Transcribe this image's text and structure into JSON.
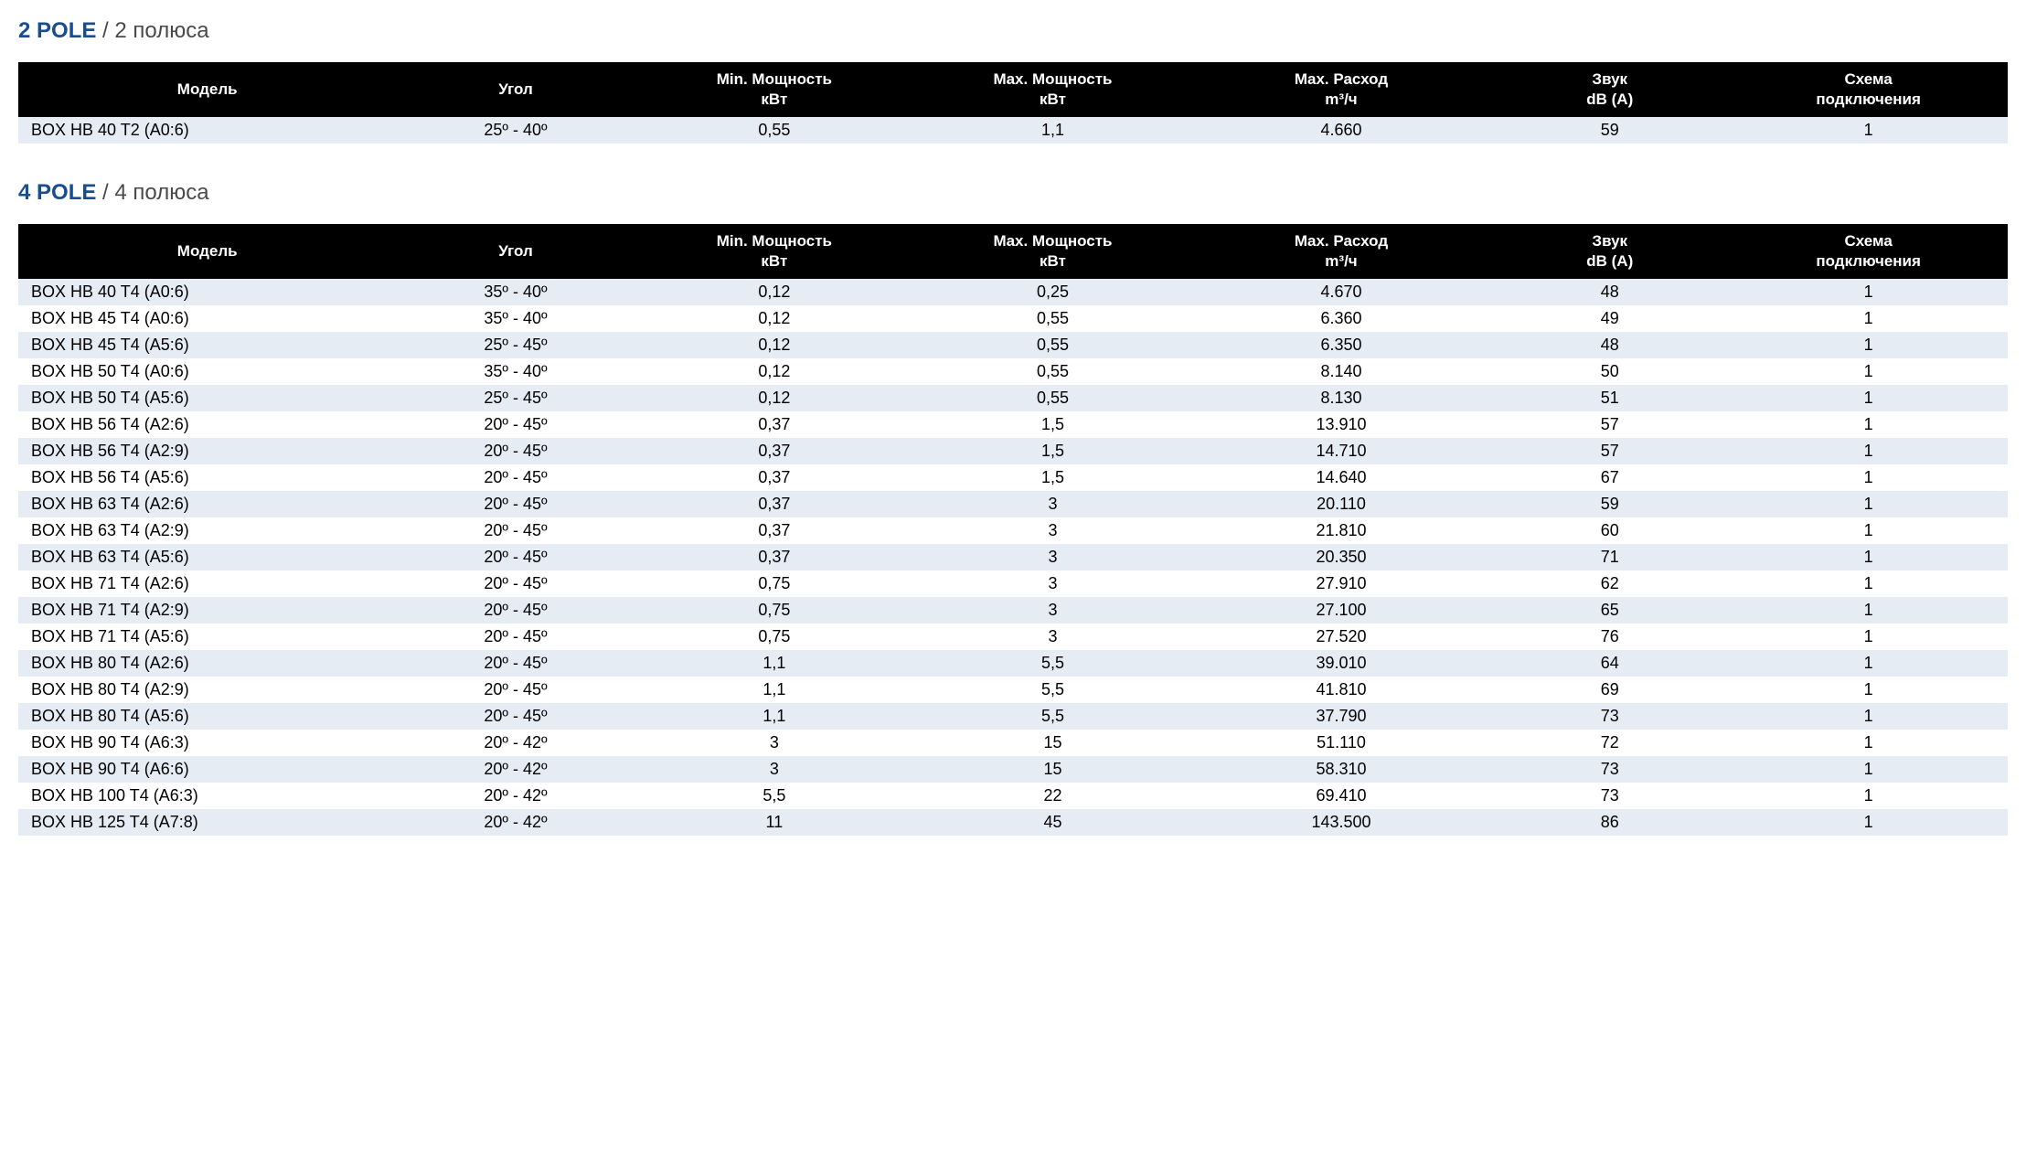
{
  "colors": {
    "header_bg": "#000000",
    "header_text": "#ffffff",
    "row_odd_bg": "#e6ecf4",
    "row_even_bg": "#ffffff",
    "title_accent": "#1a4d8f",
    "title_sub": "#4a4a4a",
    "body_text": "#000000"
  },
  "typography": {
    "body_font": "Arial",
    "body_size_pt": 14,
    "header_size_pt": 13,
    "title_size_pt": 18,
    "title_weight": "bold"
  },
  "columns": {
    "model": {
      "label_line1": "Модель",
      "label_line2": ""
    },
    "angle": {
      "label_line1": "Угол",
      "label_line2": ""
    },
    "minp": {
      "label_line1": "Min. Мощность",
      "label_line2": "кВт"
    },
    "maxp": {
      "label_line1": "Max. Мощность",
      "label_line2": "кВт"
    },
    "flow": {
      "label_line1": "Max. Расход",
      "label_line2": "m³/ч"
    },
    "sound": {
      "label_line1": "Звук",
      "label_line2": "dB (A)"
    },
    "scheme": {
      "label_line1": "Схема",
      "label_line2": "подключения"
    }
  },
  "sections": [
    {
      "title_main": "2 POLE",
      "title_sub": " / 2 полюса",
      "rows": [
        {
          "model": "BOX HB 40 T2 (A0:6)",
          "angle": "25º - 40º",
          "minp": "0,55",
          "maxp": "1,1",
          "flow": "4.660",
          "sound": "59",
          "scheme": "1"
        }
      ]
    },
    {
      "title_main": "4 POLE",
      "title_sub": " / 4 полюса",
      "rows": [
        {
          "model": "BOX HB 40 T4 (A0:6)",
          "angle": "35º - 40º",
          "minp": "0,12",
          "maxp": "0,25",
          "flow": "4.670",
          "sound": "48",
          "scheme": "1"
        },
        {
          "model": "BOX HB 45 T4 (A0:6)",
          "angle": "35º - 40º",
          "minp": "0,12",
          "maxp": "0,55",
          "flow": "6.360",
          "sound": "49",
          "scheme": "1"
        },
        {
          "model": "BOX HB 45 T4 (A5:6)",
          "angle": "25º - 45º",
          "minp": "0,12",
          "maxp": "0,55",
          "flow": "6.350",
          "sound": "48",
          "scheme": "1"
        },
        {
          "model": "BOX HB 50 T4 (A0:6)",
          "angle": "35º - 40º",
          "minp": "0,12",
          "maxp": "0,55",
          "flow": "8.140",
          "sound": "50",
          "scheme": "1"
        },
        {
          "model": "BOX HB 50 T4 (A5:6)",
          "angle": "25º - 45º",
          "minp": "0,12",
          "maxp": "0,55",
          "flow": "8.130",
          "sound": "51",
          "scheme": "1"
        },
        {
          "model": "BOX HB 56 T4 (A2:6)",
          "angle": "20º - 45º",
          "minp": "0,37",
          "maxp": "1,5",
          "flow": "13.910",
          "sound": "57",
          "scheme": "1"
        },
        {
          "model": "BOX HB 56 T4 (A2:9)",
          "angle": "20º - 45º",
          "minp": "0,37",
          "maxp": "1,5",
          "flow": "14.710",
          "sound": "57",
          "scheme": "1"
        },
        {
          "model": "BOX HB 56 T4 (A5:6)",
          "angle": "20º - 45º",
          "minp": "0,37",
          "maxp": "1,5",
          "flow": "14.640",
          "sound": "67",
          "scheme": "1"
        },
        {
          "model": "BOX HB 63 T4 (A2:6)",
          "angle": "20º - 45º",
          "minp": "0,37",
          "maxp": "3",
          "flow": "20.110",
          "sound": "59",
          "scheme": "1"
        },
        {
          "model": "BOX HB 63 T4 (A2:9)",
          "angle": "20º - 45º",
          "minp": "0,37",
          "maxp": "3",
          "flow": "21.810",
          "sound": "60",
          "scheme": "1"
        },
        {
          "model": "BOX HB 63 T4 (A5:6)",
          "angle": "20º - 45º",
          "minp": "0,37",
          "maxp": "3",
          "flow": "20.350",
          "sound": "71",
          "scheme": "1"
        },
        {
          "model": "BOX HB 71 T4 (A2:6)",
          "angle": "20º - 45º",
          "minp": "0,75",
          "maxp": "3",
          "flow": "27.910",
          "sound": "62",
          "scheme": "1"
        },
        {
          "model": "BOX HB 71 T4 (A2:9)",
          "angle": "20º - 45º",
          "minp": "0,75",
          "maxp": "3",
          "flow": "27.100",
          "sound": "65",
          "scheme": "1"
        },
        {
          "model": "BOX HB 71 T4 (A5:6)",
          "angle": "20º - 45º",
          "minp": "0,75",
          "maxp": "3",
          "flow": "27.520",
          "sound": "76",
          "scheme": "1"
        },
        {
          "model": "BOX HB 80 T4 (A2:6)",
          "angle": "20º - 45º",
          "minp": "1,1",
          "maxp": "5,5",
          "flow": "39.010",
          "sound": "64",
          "scheme": "1"
        },
        {
          "model": "BOX HB 80 T4 (A2:9)",
          "angle": "20º - 45º",
          "minp": "1,1",
          "maxp": "5,5",
          "flow": "41.810",
          "sound": "69",
          "scheme": "1"
        },
        {
          "model": "BOX HB 80 T4 (A5:6)",
          "angle": "20º - 45º",
          "minp": "1,1",
          "maxp": "5,5",
          "flow": "37.790",
          "sound": "73",
          "scheme": "1"
        },
        {
          "model": "BOX HB 90 T4 (A6:3)",
          "angle": "20º - 42º",
          "minp": "3",
          "maxp": "15",
          "flow": "51.110",
          "sound": "72",
          "scheme": "1"
        },
        {
          "model": "BOX HB 90 T4 (A6:6)",
          "angle": "20º - 42º",
          "minp": "3",
          "maxp": "15",
          "flow": "58.310",
          "sound": "73",
          "scheme": "1"
        },
        {
          "model": "BOX HB 100 T4 (A6:3)",
          "angle": "20º - 42º",
          "minp": "5,5",
          "maxp": "22",
          "flow": "69.410",
          "sound": "73",
          "scheme": "1"
        },
        {
          "model": "BOX HB 125 T4 (A7:8)",
          "angle": "20º - 42º",
          "minp": "11",
          "maxp": "45",
          "flow": "143.500",
          "sound": "86",
          "scheme": "1"
        }
      ]
    }
  ]
}
